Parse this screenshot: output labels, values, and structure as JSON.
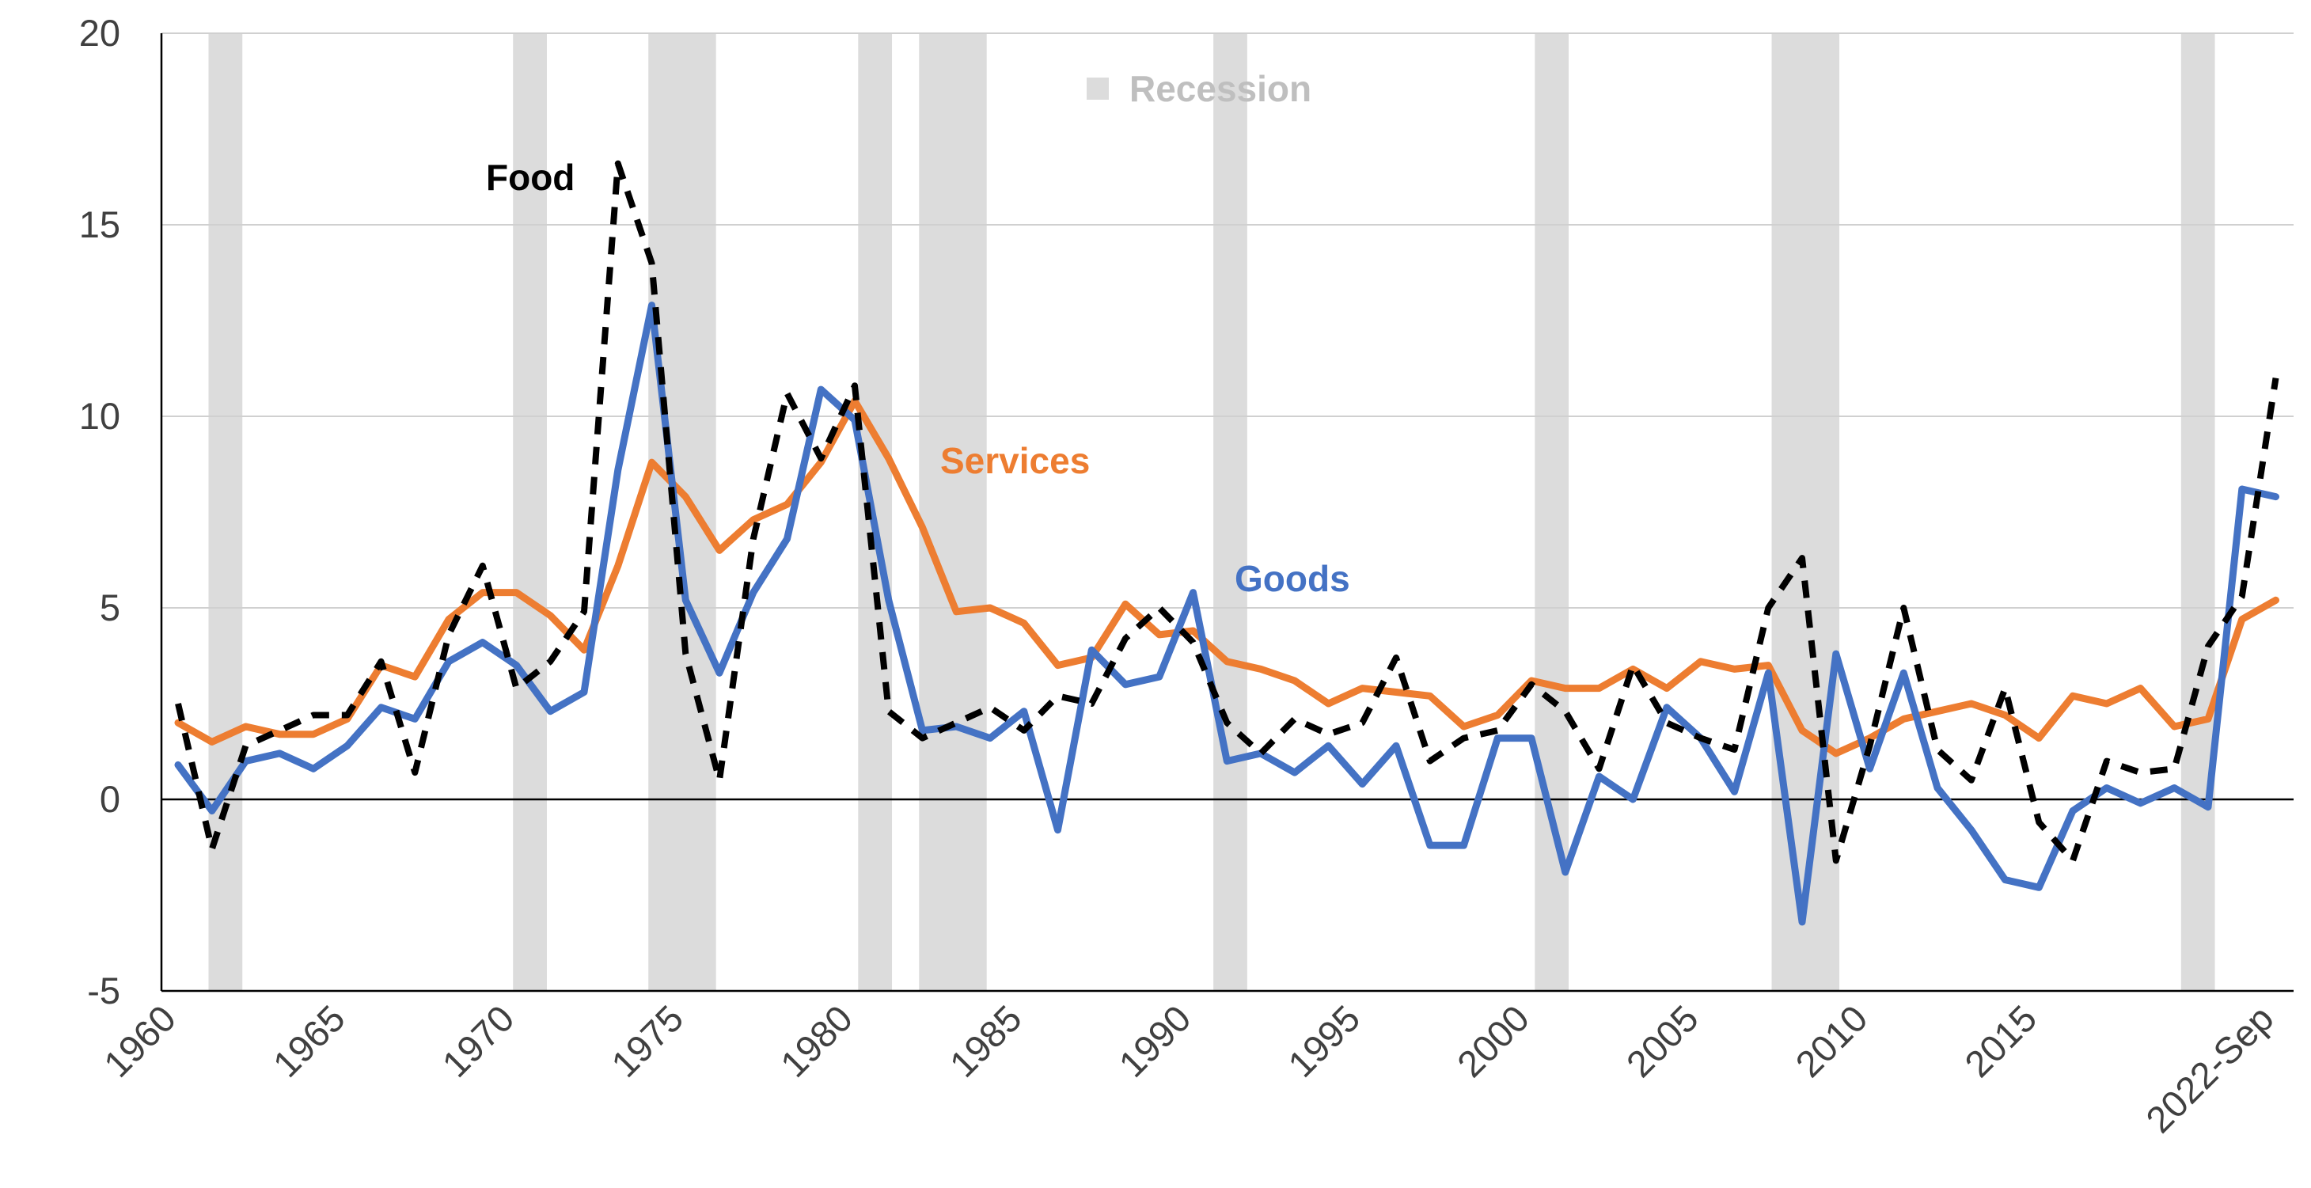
{
  "chart_data": {
    "type": "line",
    "title": "",
    "xlabel": "",
    "ylabel": "",
    "ylim": [
      -5,
      20
    ],
    "yticks": [
      -5,
      0,
      5,
      10,
      15,
      20
    ],
    "x_tick_labels": [
      "1960",
      "1965",
      "1970",
      "1975",
      "1980",
      "1985",
      "1990",
      "1995",
      "2000",
      "2005",
      "2010",
      "2015",
      "2022-Sep"
    ],
    "x": [
      1960,
      1961,
      1962,
      1963,
      1964,
      1965,
      1966,
      1967,
      1968,
      1969,
      1970,
      1971,
      1972,
      1973,
      1974,
      1975,
      1976,
      1977,
      1978,
      1979,
      1980,
      1981,
      1982,
      1983,
      1984,
      1985,
      1986,
      1987,
      1988,
      1989,
      1990,
      1991,
      1992,
      1993,
      1994,
      1995,
      1996,
      1997,
      1998,
      1999,
      2000,
      2001,
      2002,
      2003,
      2004,
      2005,
      2006,
      2007,
      2008,
      2009,
      2010,
      2011,
      2012,
      2013,
      2014,
      2015,
      2016,
      2017,
      2018,
      2019,
      2020,
      2021,
      2022
    ],
    "recessions": [
      [
        1960.9,
        1961.9
      ],
      [
        1969.9,
        1970.9
      ],
      [
        1973.9,
        1975.9
      ],
      [
        1980.1,
        1981.1
      ],
      [
        1981.9,
        1983.9
      ],
      [
        1990.6,
        1991.6
      ],
      [
        2000.1,
        2001.1
      ],
      [
        2007.1,
        2009.1
      ],
      [
        2019.2,
        2020.2
      ]
    ],
    "legend": {
      "recession_label": "Recession",
      "recession_color": "#dcdcdc"
    },
    "series": [
      {
        "name": "Food",
        "color": "#000000",
        "dashed": true,
        "values": [
          2.5,
          -1.3,
          1.4,
          1.8,
          2.2,
          2.2,
          3.6,
          0.7,
          4.3,
          6.1,
          2.9,
          3.6,
          4.9,
          16.6,
          14.0,
          3.8,
          0.5,
          6.8,
          10.6,
          8.9,
          10.8,
          2.3,
          1.6,
          2.0,
          2.4,
          1.8,
          2.7,
          2.5,
          4.2,
          5.0,
          4.1,
          2.0,
          1.2,
          2.1,
          1.7,
          2.0,
          3.7,
          1.0,
          1.6,
          1.8,
          3.0,
          2.3,
          0.8,
          3.5,
          2.0,
          1.6,
          1.3,
          5.0,
          6.3,
          -1.6,
          1.4,
          5.0,
          1.3,
          0.5,
          2.9,
          -0.6,
          -1.6,
          1.0,
          0.7,
          0.8,
          4.0,
          5.3,
          11.0
        ]
      },
      {
        "name": "Services",
        "color": "#ed7d31",
        "dashed": false,
        "values": [
          2.0,
          1.5,
          1.9,
          1.7,
          1.7,
          2.1,
          3.5,
          3.2,
          4.7,
          5.4,
          5.4,
          4.8,
          3.9,
          6.1,
          8.8,
          7.9,
          6.5,
          7.3,
          7.7,
          8.8,
          10.4,
          8.9,
          7.1,
          4.9,
          5.0,
          4.6,
          3.5,
          3.7,
          5.1,
          4.3,
          4.4,
          3.6,
          3.4,
          3.1,
          2.5,
          2.9,
          2.8,
          2.7,
          1.9,
          2.2,
          3.1,
          2.9,
          2.9,
          3.4,
          2.9,
          3.6,
          3.4,
          3.5,
          1.8,
          1.2,
          1.6,
          2.1,
          2.3,
          2.5,
          2.2,
          1.6,
          2.7,
          2.5,
          2.9,
          1.9,
          2.1,
          4.7,
          5.2
        ]
      },
      {
        "name": "Goods",
        "color": "#4472c4",
        "dashed": false,
        "values": [
          0.9,
          -0.3,
          1.0,
          1.2,
          0.8,
          1.4,
          2.4,
          2.1,
          3.6,
          4.1,
          3.5,
          2.3,
          2.8,
          8.6,
          12.9,
          5.2,
          3.3,
          5.4,
          6.8,
          10.7,
          9.9,
          5.2,
          1.8,
          1.9,
          1.6,
          2.3,
          -0.8,
          3.9,
          3.0,
          3.2,
          5.4,
          1.0,
          1.2,
          0.7,
          1.4,
          0.4,
          1.4,
          -1.2,
          -1.2,
          1.6,
          1.6,
          -1.9,
          0.6,
          0.0,
          2.4,
          1.6,
          0.2,
          3.3,
          -3.2,
          3.8,
          0.8,
          3.3,
          0.3,
          -0.8,
          -2.1,
          -2.3,
          -0.3,
          0.3,
          -0.1,
          0.3,
          -0.2,
          8.1,
          7.9
        ]
      }
    ]
  }
}
